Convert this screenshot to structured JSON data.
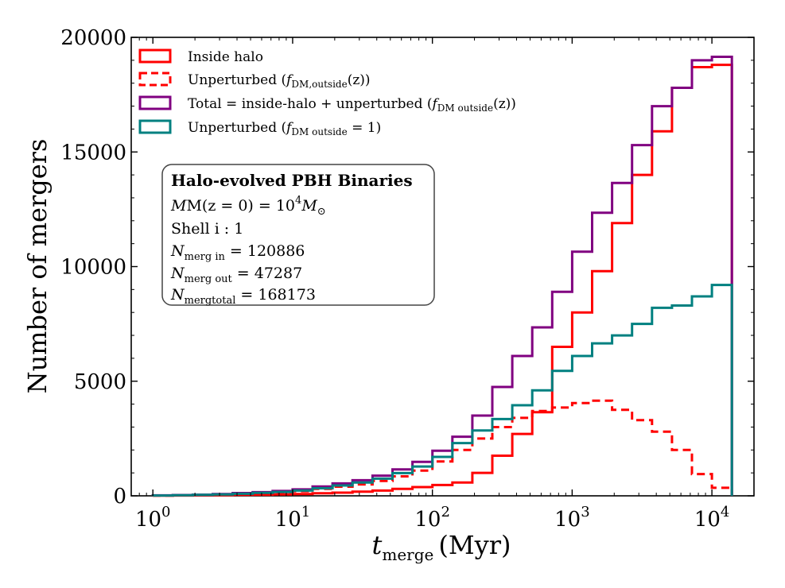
{
  "chart_data": {
    "type": "histogram-step",
    "xscale": "log",
    "xlim": [
      0.7,
      20000
    ],
    "ylim": [
      0,
      20000
    ],
    "xlabel": "t_merge (Myr)",
    "xlabel_main": "t",
    "xlabel_sub": "merge",
    "xlabel_unit": "(Myr)",
    "ylabel": "Number of mergers",
    "xticks": [
      {
        "value": 1,
        "base": "10",
        "exp": "0"
      },
      {
        "value": 10,
        "base": "10",
        "exp": "1"
      },
      {
        "value": 100,
        "base": "10",
        "exp": "2"
      },
      {
        "value": 1000,
        "base": "10",
        "exp": "3"
      },
      {
        "value": 10000,
        "base": "10",
        "exp": "4"
      }
    ],
    "yticks": [
      0,
      5000,
      10000,
      15000,
      20000
    ],
    "yticks_labels": [
      "0",
      "5000",
      "10000",
      "15000",
      "20000"
    ],
    "bin_edges": [
      1,
      1.3895,
      1.9307,
      2.6827,
      3.7276,
      5.1795,
      7.1969,
      10,
      13.895,
      19.307,
      26.827,
      37.276,
      51.795,
      71.969,
      100,
      138.95,
      193.07,
      268.27,
      372.76,
      517.95,
      719.69,
      1000,
      1389.5,
      1930.7,
      2682.7,
      3727.6,
      5179.5,
      7196.9,
      10000,
      13895
    ],
    "series": [
      {
        "name": "Inside halo",
        "color": "#ff0000",
        "style": "solid",
        "values": [
          10,
          15,
          20,
          30,
          40,
          50,
          60,
          80,
          110,
          140,
          180,
          230,
          300,
          380,
          470,
          580,
          1000,
          1750,
          2700,
          3650,
          6500,
          8000,
          9800,
          11900,
          14000,
          15900,
          17800,
          18700,
          18800
        ]
      },
      {
        "name": "Unperturbed (f_DM,outside(z))",
        "color": "#ff0000",
        "style": "dashed",
        "values": [
          10,
          20,
          30,
          50,
          80,
          110,
          150,
          200,
          300,
          400,
          500,
          650,
          850,
          1100,
          1500,
          2000,
          2500,
          3000,
          3400,
          3700,
          3850,
          4050,
          4150,
          3750,
          3300,
          2800,
          2000,
          950,
          350
        ]
      },
      {
        "name": "Total = inside-halo + unperturbed (f_DM,outside(z))",
        "color": "#800080",
        "style": "solid",
        "values": [
          20,
          35,
          50,
          80,
          120,
          160,
          210,
          280,
          410,
          540,
          680,
          880,
          1150,
          1480,
          1970,
          2580,
          3500,
          4750,
          6100,
          7350,
          8900,
          10650,
          12350,
          13650,
          15300,
          17000,
          17800,
          19000,
          19150
        ]
      },
      {
        "name": "Unperturbed (f_DM,outside = 1)",
        "color": "#008080",
        "style": "solid",
        "values": [
          15,
          25,
          40,
          60,
          90,
          130,
          170,
          230,
          330,
          450,
          580,
          750,
          990,
          1280,
          1700,
          2300,
          2850,
          3350,
          3950,
          4600,
          5450,
          6100,
          6650,
          7000,
          7500,
          8200,
          8300,
          8700,
          9200
        ]
      }
    ],
    "legend": {
      "placement": "upper-left",
      "entries": [
        {
          "main": "Inside halo",
          "sub": ""
        },
        {
          "main": "Unperturbed (",
          "fvar": "f",
          "sub": "DM,outside",
          "tail": "(z))"
        },
        {
          "main": "Total = inside-halo + unperturbed (",
          "fvar": "f",
          "sub": "DM outside",
          "tail": "(z))"
        },
        {
          "main": "Unperturbed (",
          "fvar": "f",
          "sub": "DM outside",
          "tail": " = 1)"
        }
      ]
    },
    "annotation": {
      "title": "Halo-evolved PBH Binaries",
      "mass_lhs": "M(z = 0) = 10",
      "mass_exp": "4",
      "mass_rhs": "M",
      "mass_sub": "⊙",
      "shell": "Shell i : 1",
      "n_in_sub": "merg in",
      "n_in_val": " = 120886",
      "n_out_sub": "merg out",
      "n_out_val": " = 47287",
      "n_tot_sub": "mergtotal",
      "n_tot_val": " = 168173",
      "n_symbol": "N"
    }
  }
}
